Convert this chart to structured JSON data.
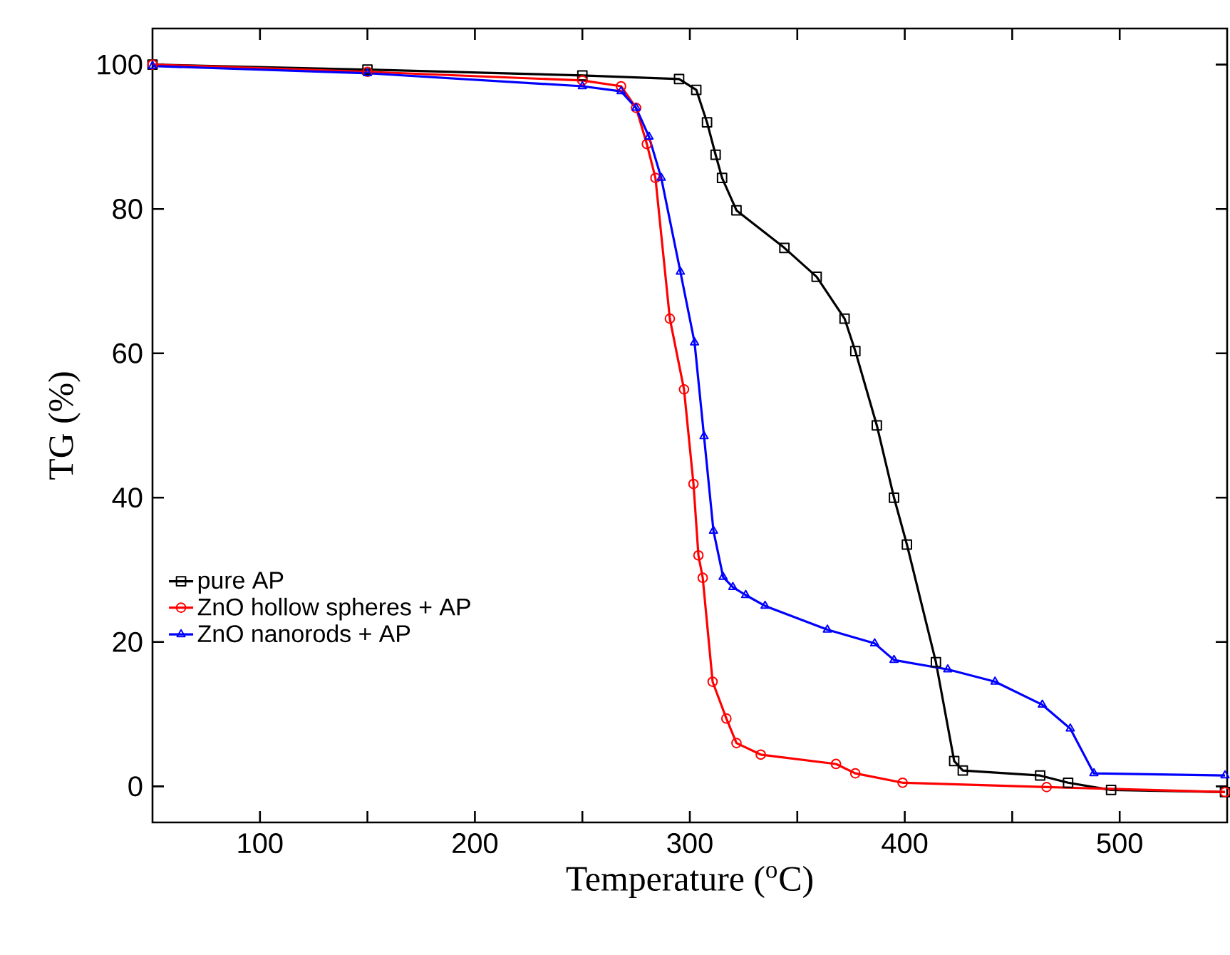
{
  "chart_data": {
    "type": "line",
    "xlabel": "Temperature ($^{o}$C)",
    "ylabel": "TG (%)",
    "xlim": [
      50,
      550
    ],
    "ylim": [
      -5,
      105
    ],
    "xticks": [
      100,
      {
        "value": 150,
        "label": null
      },
      200,
      {
        "value": 250,
        "label": null
      },
      300,
      {
        "value": 350,
        "label": null
      },
      400,
      {
        "value": 450,
        "label": null
      },
      500
    ],
    "yticks": [
      0,
      20,
      40,
      60,
      80,
      100
    ],
    "legend": "left",
    "grid": false,
    "series": [
      {
        "name": "pure AP",
        "color": "#000000",
        "marker": "square",
        "x": [
          50,
          150,
          250,
          295,
          303,
          308,
          312,
          315,
          321.7,
          344,
          359,
          372,
          377,
          387,
          395,
          401,
          414.5,
          423,
          427,
          463,
          476,
          496,
          549
        ],
        "values": [
          100,
          99.3,
          98.5,
          98,
          96.5,
          92,
          87.5,
          84.3,
          79.8,
          74.6,
          70.6,
          64.8,
          60.3,
          50,
          40,
          33.5,
          17.2,
          3.5,
          2.2,
          1.5,
          0.5,
          -0.5,
          -0.8
        ]
      },
      {
        "name": "ZnO hollow spheres + AP",
        "color": "#ff0000",
        "marker": "circle",
        "x": [
          50,
          150,
          250,
          268,
          275,
          280,
          284,
          290.7,
          297.3,
          301.7,
          304,
          306,
          310.6,
          317,
          321.7,
          333,
          368,
          377,
          399,
          466,
          549
        ],
        "values": [
          100,
          99,
          97.8,
          97,
          94,
          89,
          84.3,
          64.8,
          55,
          41.9,
          32,
          28.9,
          14.5,
          9.4,
          6,
          4.4,
          3.1,
          1.8,
          0.5,
          -0.1,
          -0.8
        ]
      },
      {
        "name": "ZnO nanorods + AP",
        "color": "#0000ff",
        "marker": "triangle",
        "x": [
          50,
          150,
          250,
          268,
          275,
          281,
          286.7,
          295.6,
          302.2,
          306.6,
          311,
          315.5,
          320,
          326,
          335,
          364,
          386,
          395,
          420,
          442,
          464,
          477,
          488,
          549
        ],
        "values": [
          99.8,
          98.8,
          97,
          96.3,
          94,
          90,
          84.3,
          71.3,
          61.5,
          48.5,
          35.4,
          29,
          27.6,
          26.5,
          25,
          21.7,
          19.8,
          17.5,
          16.2,
          14.5,
          11.3,
          8,
          1.8,
          1.5
        ]
      }
    ]
  }
}
